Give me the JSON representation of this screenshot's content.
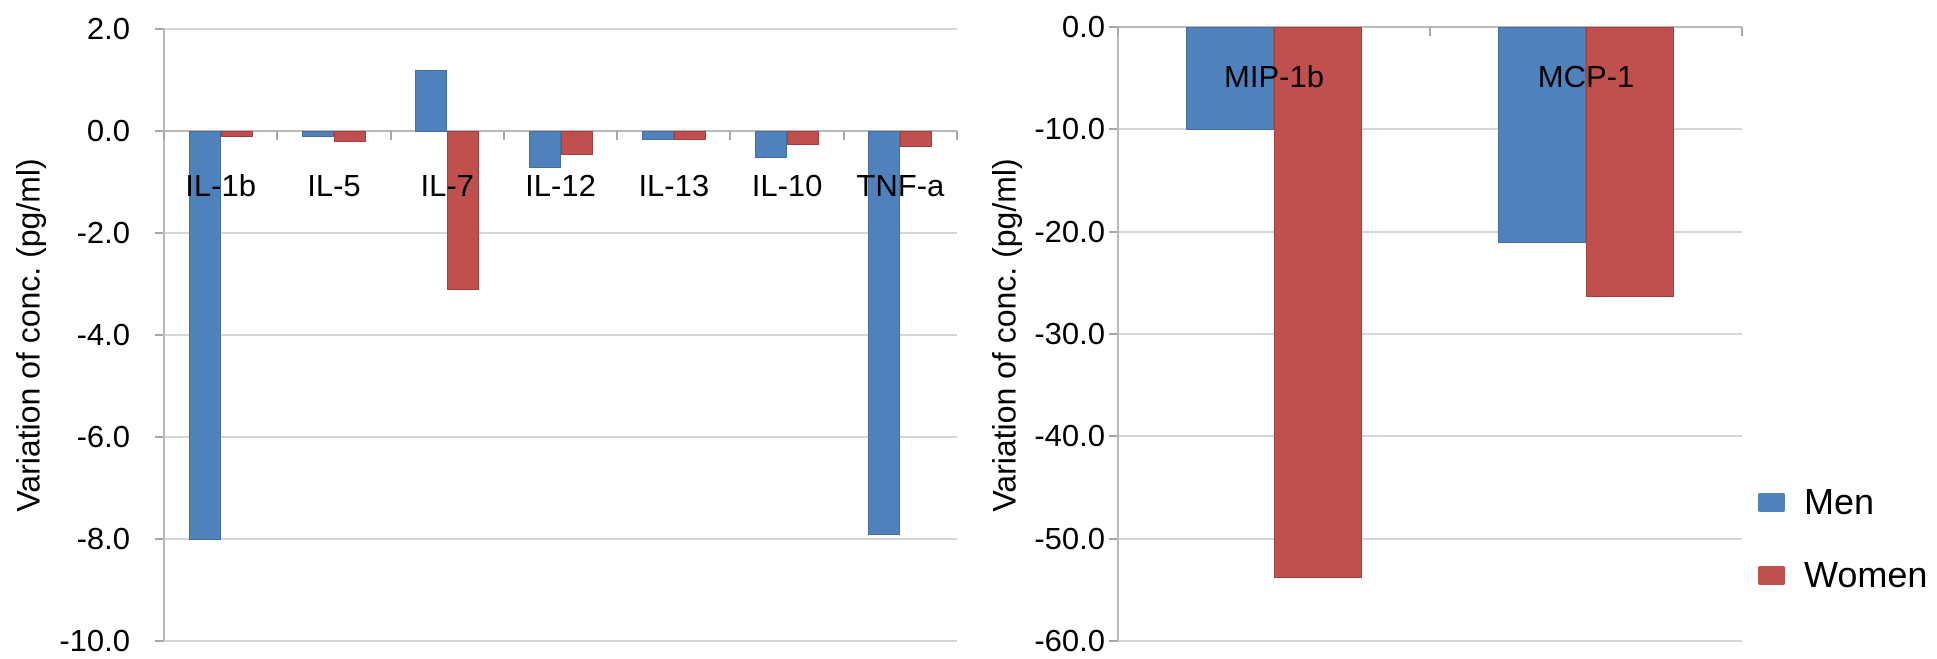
{
  "colors": {
    "men": "#4f81bd",
    "women": "#c0504d",
    "gridline": "#d6d6d6",
    "axis": "#b0b0b0",
    "text": "#000000",
    "background": "#ffffff"
  },
  "legend": {
    "items": [
      {
        "label": "Men",
        "color": "#4f81bd",
        "swatch": "blue-square"
      },
      {
        "label": "Women",
        "color": "#c0504d",
        "swatch": "red-square"
      }
    ]
  },
  "chart_data": [
    {
      "type": "bar",
      "title": "",
      "ylabel": "Variation of conc. (pg/ml)",
      "xlabel": "",
      "categories": [
        "IL-1b",
        "IL-5",
        "IL-7",
        "IL-12",
        "IL-13",
        "IL-10",
        "TNF-a"
      ],
      "series": [
        {
          "name": "Men",
          "color": "#4f81bd",
          "values": [
            -8.0,
            -0.1,
            1.2,
            -0.7,
            -0.15,
            -0.5,
            -7.9
          ]
        },
        {
          "name": "Women",
          "color": "#c0504d",
          "values": [
            -0.1,
            -0.2,
            -3.1,
            -0.45,
            -0.15,
            -0.25,
            -0.3
          ]
        }
      ],
      "ylim": [
        -10,
        2
      ],
      "ytick_values": [
        2,
        0,
        -2,
        -4,
        -6,
        -8,
        -10
      ],
      "ytick_labels": [
        "2.0",
        "0.0",
        "-2.0",
        "-4.0",
        "-6.0",
        "-8.0",
        "-10.0"
      ],
      "grid": true,
      "legend_position": "none",
      "category_labels_below_zero_line": true
    },
    {
      "type": "bar",
      "title": "",
      "ylabel": "Variation of conc. (pg/ml)",
      "xlabel": "",
      "categories": [
        "MIP-1b",
        "MCP-1"
      ],
      "series": [
        {
          "name": "Men",
          "color": "#4f81bd",
          "values": [
            -10.0,
            -21.0
          ]
        },
        {
          "name": "Women",
          "color": "#c0504d",
          "values": [
            -53.7,
            -26.3
          ]
        }
      ],
      "ylim": [
        -60,
        0
      ],
      "ytick_values": [
        0,
        -10,
        -20,
        -30,
        -40,
        -50,
        -60
      ],
      "ytick_labels": [
        "0.0",
        "-10.0",
        "-20.0",
        "-30.0",
        "-40.0",
        "-50.0",
        "-60.0"
      ],
      "grid": true,
      "legend_position": "right",
      "category_labels_below_zero_line": true
    }
  ]
}
